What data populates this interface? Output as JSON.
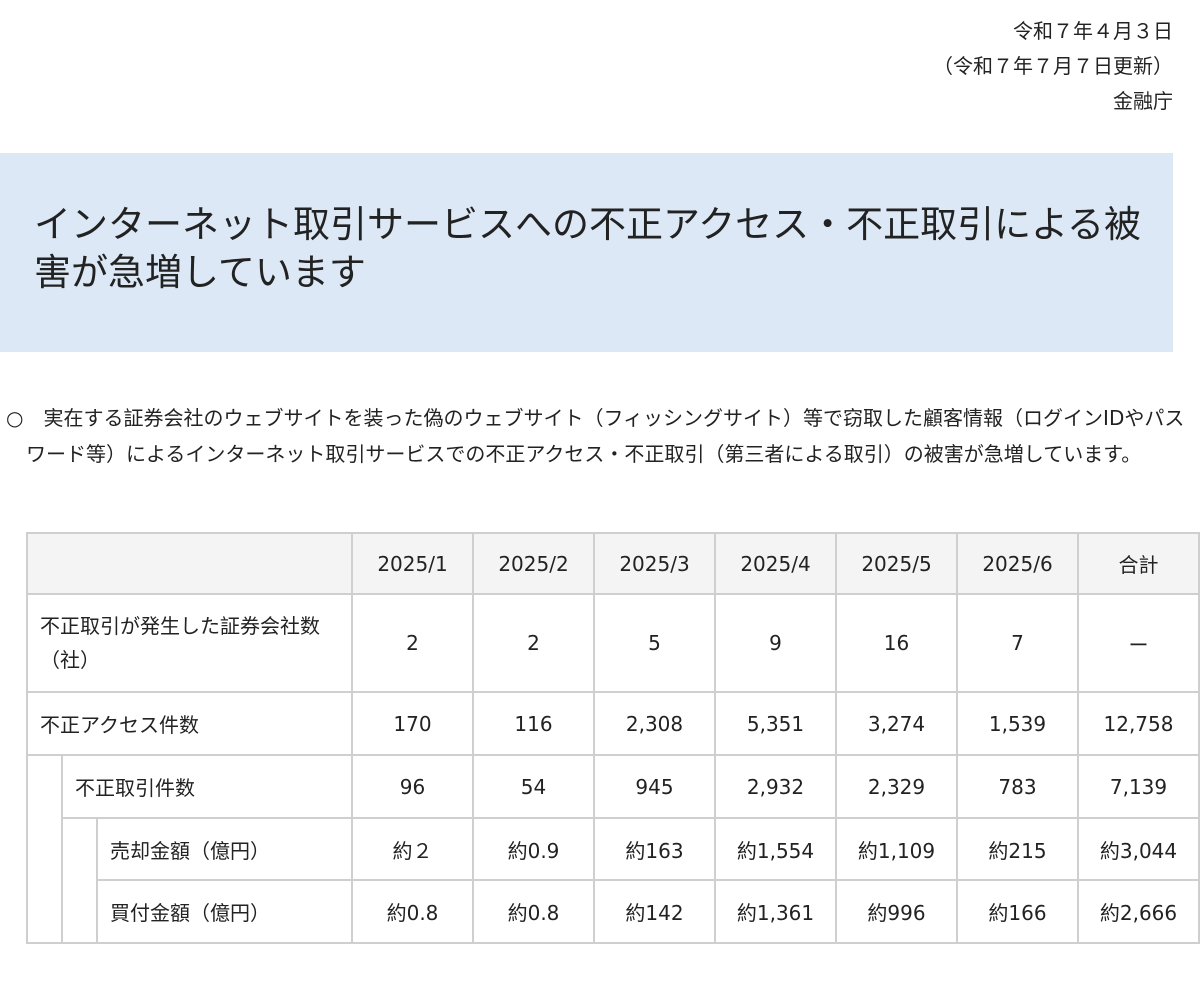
{
  "header": {
    "date": "令和７年４月３日",
    "updated": "（令和７年７月７日更新）",
    "agency": "金融庁"
  },
  "banner": {
    "title": "インターネット取引サービスへの不正アクセス・不正取引による被害が急増しています"
  },
  "intro": "○　実在する証券会社のウェブサイトを装った偽のウェブサイト（フィッシングサイト）等で窃取した顧客情報（ログインIDやパスワード等）によるインターネット取引サービスでの不正アクセス・不正取引（第三者による取引）の被害が急増しています。",
  "table": {
    "columns": [
      "2025/1",
      "2025/2",
      "2025/3",
      "2025/4",
      "2025/5",
      "2025/6",
      "合計"
    ],
    "rows": [
      {
        "label": "不正取引が発生した証券会社数（社）",
        "values": [
          "2",
          "2",
          "5",
          "9",
          "16",
          "7",
          "ー"
        ]
      },
      {
        "label": "不正アクセス件数",
        "values": [
          "170",
          "116",
          "2,308",
          "5,351",
          "3,274",
          "1,539",
          "12,758"
        ]
      },
      {
        "label": "不正取引件数",
        "values": [
          "96",
          "54",
          "945",
          "2,932",
          "2,329",
          "783",
          "7,139"
        ]
      },
      {
        "label": "売却金額（億円）",
        "values": [
          "約２",
          "約0.9",
          "約163",
          "約1,554",
          "約1,109",
          "約215",
          "約3,044"
        ]
      },
      {
        "label": "買付金額（億円）",
        "values": [
          "約0.8",
          "約0.8",
          "約142",
          "約1,361",
          "約996",
          "約166",
          "約2,666"
        ]
      }
    ]
  }
}
